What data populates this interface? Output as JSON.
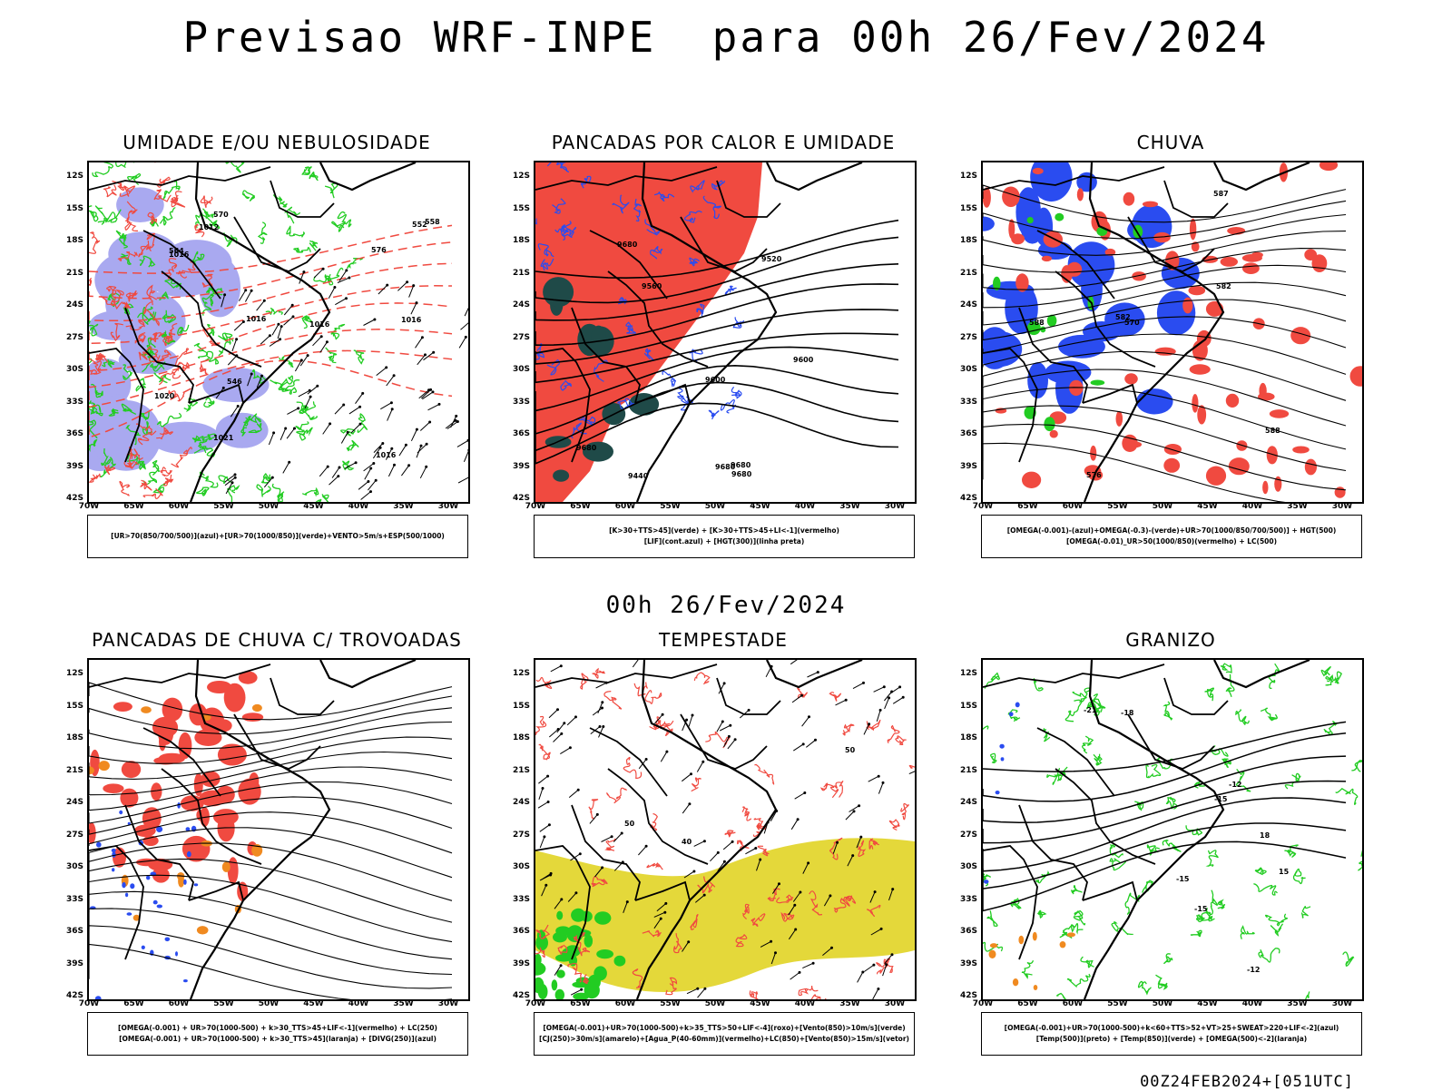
{
  "header": {
    "title": "Previsao WRF-INPE  para 00h 26/Fev/2024",
    "mid_title": "00h 26/Fev/2024",
    "footer": "00Z24FEB2024+[051UTC]"
  },
  "axes": {
    "lat_labels": [
      "12S",
      "15S",
      "18S",
      "21S",
      "24S",
      "27S",
      "30S",
      "33S",
      "36S",
      "39S",
      "42S"
    ],
    "lon_labels": [
      "70W",
      "65W",
      "60W",
      "55W",
      "50W",
      "45W",
      "40W",
      "35W",
      "30W"
    ]
  },
  "panels": [
    {
      "title": "UMIDADE E/OU NEBULOSIDADE",
      "legend": [
        "[UR>70(850/700/500)](azul)+[UR>70(1000/850)](verde)+VENTO>5m/s+ESP(500/1000)"
      ],
      "contour_labels": [
        "1012",
        "1016",
        "1016",
        "1016",
        "1020",
        "1016",
        "1016",
        "1021",
        "546",
        "552",
        "576",
        "570",
        "564",
        "558"
      ]
    },
    {
      "title": "PANCADAS POR CALOR E UMIDADE",
      "legend": [
        "[K>30+TTS>45](verde) + [K>30+TTS>45+LI<-1](vermelho)",
        "[LIF](cont.azul) + [HGT(300)](linha preta)"
      ],
      "contour_labels": [
        "9680",
        "9680",
        "9680",
        "9680",
        "9600",
        "9560",
        "9520",
        "9440",
        "9600",
        "9680"
      ]
    },
    {
      "title": "CHUVA",
      "legend": [
        "[OMEGA(-0.001)-(azul)+OMEGA(-0.3)-(verde)+UR>70(1000/850/700/500)] + HGT(500)",
        "[OMEGA(-0.01)_UR>50(1000/850)(vermelho) + LC(500)"
      ],
      "contour_labels": [
        "588",
        "588",
        "582",
        "576",
        "570",
        "582",
        "587"
      ]
    },
    {
      "title": "PANCADAS DE CHUVA C/ TROVOADAS",
      "legend": [
        "[OMEGA(-0.001) + UR>70(1000-500) + k>30_TTS>45+LIF<-1](vermelho) + LC(250)",
        "[OMEGA(-0.001) + UR>70(1000-500) + k>30_TTS>45](laranja) + [DIVG(250)](azul)"
      ],
      "contour_labels": []
    },
    {
      "title": "TEMPESTADE",
      "legend": [
        "[OMEGA(-0.001)+UR>70(1000-500)+k>35_TTS>50+LIF<-4](roxo)+[Vento(850)>10m/s](verde)",
        "[CJ(250)>30m/s](amarelo)+[Agua_P(40-60mm)](vermelho)+LC(850)+[Vento(850)>15m/s](vetor)"
      ],
      "contour_labels": [
        "40",
        "50",
        "50"
      ]
    },
    {
      "title": "GRANIZO",
      "legend": [
        "[OMEGA(-0.001)+UR>70(1000-500)+k<60+TTS>52+VT>25+SWEAT>220+LIF<-2](azul)",
        "[Temp(500)](preto) + [Temp(850)](verde) + [OMEGA(500)<-2](laranja)"
      ],
      "contour_labels": [
        "-15",
        "-12",
        "-15",
        "-18",
        "-21",
        "-15",
        "-12",
        "18",
        "15"
      ]
    }
  ],
  "colors": {
    "red": "#f04a40",
    "green": "#22cc22",
    "blue": "#2a4cf0",
    "lavender": "#a9a9f0",
    "yellow": "#e4d83a",
    "orange": "#f08a20",
    "darkteal": "#1f4a48",
    "purple": "#a020c0",
    "black": "#000000"
  }
}
